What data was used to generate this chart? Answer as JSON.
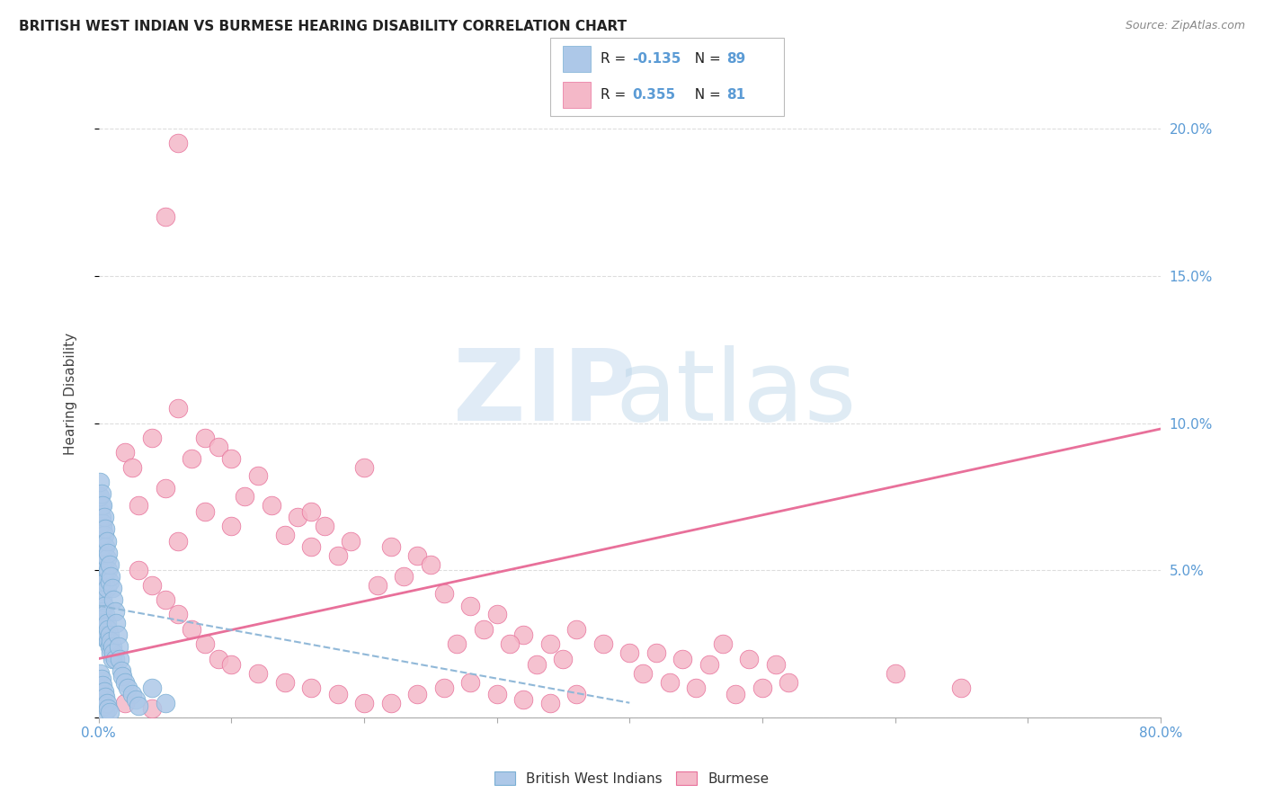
{
  "title": "BRITISH WEST INDIAN VS BURMESE HEARING DISABILITY CORRELATION CHART",
  "source": "Source: ZipAtlas.com",
  "ylabel": "Hearing Disability",
  "xlim": [
    0.0,
    0.8
  ],
  "ylim": [
    0.0,
    0.22
  ],
  "xticks": [
    0.0,
    0.1,
    0.2,
    0.3,
    0.4,
    0.5,
    0.6,
    0.7,
    0.8
  ],
  "xticklabels": [
    "0.0%",
    "",
    "",
    "",
    "",
    "",
    "",
    "",
    "80.0%"
  ],
  "yticks": [
    0.0,
    0.05,
    0.1,
    0.15,
    0.2
  ],
  "yticklabels": [
    "",
    "5.0%",
    "10.0%",
    "15.0%",
    "20.0%"
  ],
  "blue_color": "#adc8e8",
  "blue_edge": "#7aafd4",
  "pink_color": "#f4b8c8",
  "pink_edge": "#e8709a",
  "trend_blue_color": "#90b8d8",
  "trend_pink_color": "#e8709a",
  "legend_r_blue": "-0.135",
  "legend_n_blue": "89",
  "legend_r_pink": "0.355",
  "legend_n_pink": "81",
  "background_color": "#ffffff",
  "grid_color": "#dddddd",
  "axis_label_color": "#5b9bd5",
  "blue_points_x": [
    0.001,
    0.001,
    0.001,
    0.002,
    0.002,
    0.002,
    0.002,
    0.002,
    0.003,
    0.003,
    0.003,
    0.003,
    0.004,
    0.004,
    0.004,
    0.005,
    0.005,
    0.005,
    0.006,
    0.006,
    0.007,
    0.007,
    0.008,
    0.008,
    0.009,
    0.009,
    0.01,
    0.01,
    0.011,
    0.012,
    0.001,
    0.001,
    0.002,
    0.002,
    0.003,
    0.003,
    0.004,
    0.004,
    0.005,
    0.006,
    0.001,
    0.002,
    0.002,
    0.003,
    0.003,
    0.004,
    0.005,
    0.006,
    0.007,
    0.008,
    0.001,
    0.001,
    0.002,
    0.003,
    0.004,
    0.005,
    0.006,
    0.007,
    0.008,
    0.009,
    0.01,
    0.011,
    0.012,
    0.013,
    0.014,
    0.015,
    0.016,
    0.017,
    0.018,
    0.02,
    0.022,
    0.025,
    0.028,
    0.03,
    0.001,
    0.002,
    0.003,
    0.004,
    0.005,
    0.04,
    0.001,
    0.002,
    0.003,
    0.004,
    0.005,
    0.006,
    0.007,
    0.008,
    0.05
  ],
  "blue_points_y": [
    0.055,
    0.05,
    0.045,
    0.048,
    0.043,
    0.038,
    0.033,
    0.028,
    0.044,
    0.04,
    0.036,
    0.032,
    0.038,
    0.034,
    0.03,
    0.035,
    0.031,
    0.027,
    0.032,
    0.028,
    0.03,
    0.026,
    0.028,
    0.024,
    0.026,
    0.022,
    0.024,
    0.02,
    0.022,
    0.02,
    0.06,
    0.065,
    0.058,
    0.062,
    0.055,
    0.052,
    0.05,
    0.048,
    0.046,
    0.044,
    0.07,
    0.068,
    0.072,
    0.066,
    0.064,
    0.062,
    0.058,
    0.054,
    0.05,
    0.046,
    0.075,
    0.08,
    0.076,
    0.072,
    0.068,
    0.064,
    0.06,
    0.056,
    0.052,
    0.048,
    0.044,
    0.04,
    0.036,
    0.032,
    0.028,
    0.024,
    0.02,
    0.016,
    0.014,
    0.012,
    0.01,
    0.008,
    0.006,
    0.004,
    0.01,
    0.008,
    0.006,
    0.004,
    0.002,
    0.01,
    0.015,
    0.013,
    0.011,
    0.009,
    0.007,
    0.005,
    0.003,
    0.002,
    0.005
  ],
  "pink_points_x": [
    0.02,
    0.05,
    0.025,
    0.04,
    0.06,
    0.08,
    0.07,
    0.09,
    0.05,
    0.03,
    0.1,
    0.12,
    0.11,
    0.13,
    0.15,
    0.14,
    0.16,
    0.1,
    0.08,
    0.06,
    0.18,
    0.2,
    0.19,
    0.17,
    0.16,
    0.22,
    0.24,
    0.25,
    0.21,
    0.23,
    0.26,
    0.28,
    0.3,
    0.29,
    0.27,
    0.32,
    0.34,
    0.36,
    0.38,
    0.4,
    0.35,
    0.33,
    0.31,
    0.42,
    0.44,
    0.46,
    0.41,
    0.43,
    0.45,
    0.48,
    0.5,
    0.52,
    0.47,
    0.49,
    0.51,
    0.6,
    0.65,
    0.03,
    0.04,
    0.05,
    0.06,
    0.07,
    0.08,
    0.09,
    0.1,
    0.12,
    0.14,
    0.16,
    0.18,
    0.2,
    0.22,
    0.24,
    0.26,
    0.28,
    0.3,
    0.32,
    0.34,
    0.36,
    0.02,
    0.04,
    0.06
  ],
  "pink_points_y": [
    0.09,
    0.17,
    0.085,
    0.095,
    0.105,
    0.095,
    0.088,
    0.092,
    0.078,
    0.072,
    0.088,
    0.082,
    0.075,
    0.072,
    0.068,
    0.062,
    0.058,
    0.065,
    0.07,
    0.06,
    0.055,
    0.085,
    0.06,
    0.065,
    0.07,
    0.058,
    0.055,
    0.052,
    0.045,
    0.048,
    0.042,
    0.038,
    0.035,
    0.03,
    0.025,
    0.028,
    0.025,
    0.03,
    0.025,
    0.022,
    0.02,
    0.018,
    0.025,
    0.022,
    0.02,
    0.018,
    0.015,
    0.012,
    0.01,
    0.008,
    0.01,
    0.012,
    0.025,
    0.02,
    0.018,
    0.015,
    0.01,
    0.05,
    0.045,
    0.04,
    0.035,
    0.03,
    0.025,
    0.02,
    0.018,
    0.015,
    0.012,
    0.01,
    0.008,
    0.005,
    0.005,
    0.008,
    0.01,
    0.012,
    0.008,
    0.006,
    0.005,
    0.008,
    0.005,
    0.003,
    0.195
  ],
  "pink_trend_x": [
    0.0,
    0.8
  ],
  "pink_trend_y": [
    0.02,
    0.098
  ],
  "blue_trend_x": [
    0.0,
    0.4
  ],
  "blue_trend_y": [
    0.038,
    0.005
  ]
}
